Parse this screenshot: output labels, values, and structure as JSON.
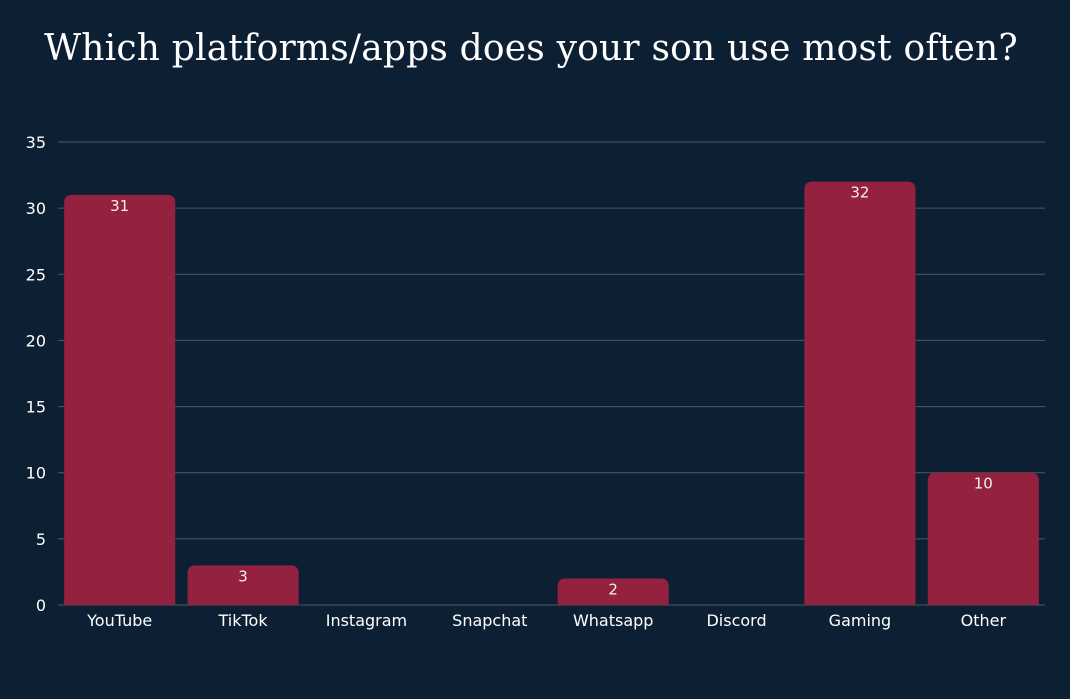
{
  "chart_data": {
    "type": "bar",
    "title": "Which platforms/apps does your son use most often?",
    "xlabel": "",
    "ylabel": "",
    "categories": [
      "YouTube",
      "TikTok",
      "Instagram",
      "Snapchat",
      "Whatsapp",
      "Discord",
      "Gaming",
      "Other"
    ],
    "values": [
      31,
      3,
      0,
      0,
      2,
      0,
      32,
      10
    ],
    "data_labels": [
      "31",
      "3",
      "",
      "",
      "2",
      "",
      "32",
      "10"
    ],
    "ylim": [
      0,
      35
    ],
    "yticks": [
      0,
      5,
      10,
      15,
      20,
      25,
      30,
      35
    ],
    "ytick_labels": [
      "0",
      "5",
      "10",
      "15",
      "20",
      "25",
      "30",
      "35"
    ],
    "grid": true,
    "legend": "none",
    "colors": {
      "background": "#0d1f33",
      "bar": "#94223f",
      "grid": "#4a5a66",
      "text": "#ffffff"
    }
  }
}
